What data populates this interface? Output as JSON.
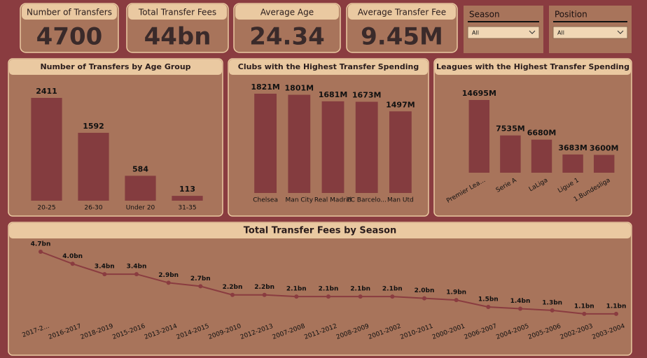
{
  "kpis": [
    {
      "label": "Number of Transfers",
      "value": 4700
    },
    {
      "label": "Total Transfer Fees",
      "value": "44bn"
    },
    {
      "label": "Average Age",
      "value": 24.34
    },
    {
      "label": "Average Transfer Fee",
      "value": "9.45M"
    }
  ],
  "slicers": [
    {
      "label": "Season",
      "value": "All"
    },
    {
      "label": "Position",
      "value": "All"
    }
  ],
  "chart_data": [
    {
      "type": "bar",
      "title": "Number of Transfers by Age Group",
      "categories": [
        "20-25",
        "26-30",
        "Under 20",
        "31-35"
      ],
      "values": [
        2411,
        1592,
        584,
        113
      ],
      "color": "#843c3f"
    },
    {
      "type": "bar",
      "title": "Clubs with the Highest Transfer Spending",
      "categories": [
        "Chelsea",
        "Man City",
        "Real Madrid",
        "FC Barcelo...",
        "Man Utd"
      ],
      "values": [
        1821,
        1801,
        1681,
        1673,
        1497
      ],
      "value_labels": [
        "1821M",
        "1801M",
        "1681M",
        "1673M",
        "1497M"
      ],
      "color": "#843c3f"
    },
    {
      "type": "bar",
      "title": "Leagues with the Highest Transfer Spending",
      "categories": [
        "Premier Lea...",
        "Serie A",
        "LaLiga",
        "Ligue 1",
        "1.Bundesliga"
      ],
      "values": [
        14695,
        7535,
        6680,
        3683,
        3600
      ],
      "value_labels": [
        "14695M",
        "7535M",
        "6680M",
        "3683M",
        "3600M"
      ],
      "color": "#843c3f"
    },
    {
      "type": "line",
      "title": "Total Transfer Fees by Season",
      "categories": [
        "2017-2...",
        "2016-2017",
        "2018-2019",
        "2015-2016",
        "2013-2014",
        "2014-2015",
        "2009-2010",
        "2012-2013",
        "2007-2008",
        "2011-2012",
        "2008-2009",
        "2001-2002",
        "2010-2011",
        "2000-2001",
        "2006-2007",
        "2004-2005",
        "2005-2006",
        "2002-2003",
        "2003-2004"
      ],
      "values": [
        4.7,
        4.0,
        3.4,
        3.4,
        2.9,
        2.7,
        2.2,
        2.2,
        2.1,
        2.1,
        2.1,
        2.1,
        2.0,
        1.9,
        1.5,
        1.4,
        1.3,
        1.1,
        1.1
      ],
      "value_labels": [
        "4.7bn",
        "4.0bn",
        "3.4bn",
        "3.4bn",
        "2.9bn",
        "2.7bn",
        "2.2bn",
        "2.2bn",
        "2.1bn",
        "2.1bn",
        "2.1bn",
        "2.1bn",
        "2.0bn",
        "1.9bn",
        "1.5bn",
        "1.4bn",
        "1.3bn",
        "1.1bn",
        "1.1bn"
      ],
      "color": "#8a3c40"
    }
  ]
}
